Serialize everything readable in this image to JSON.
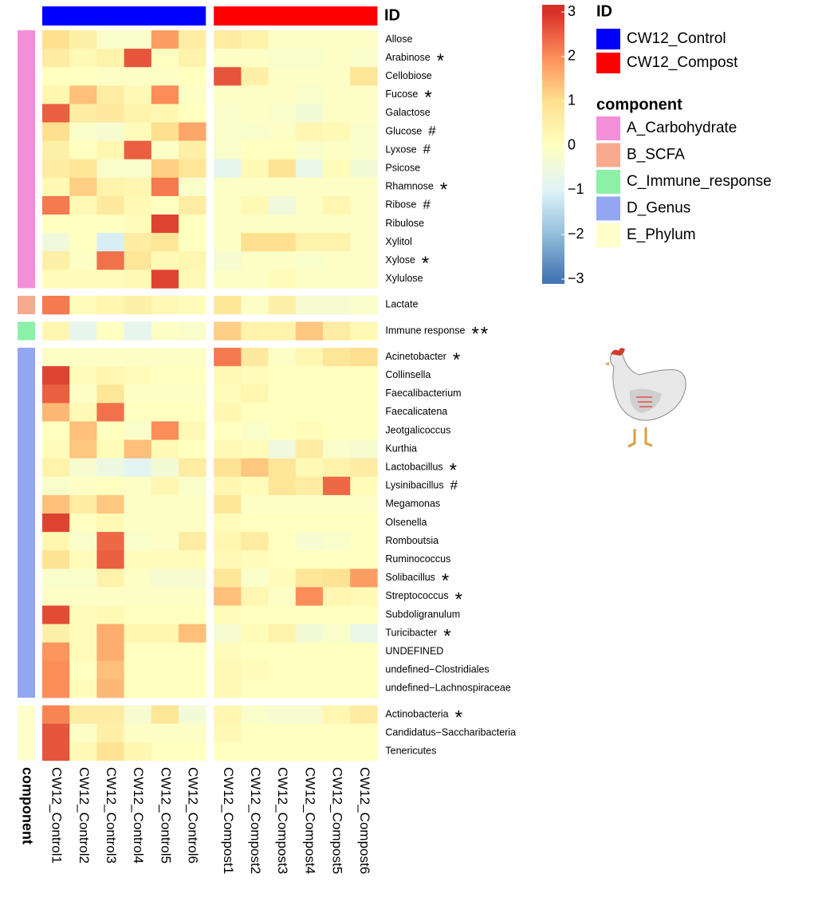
{
  "chart_data": {
    "type": "heatmap",
    "column_title": "ID",
    "row_title": "component",
    "zlim": [
      -3,
      3
    ],
    "zticks": [
      3,
      2,
      1,
      0,
      {
        "value": -1,
        "label": "−1"
      },
      {
        "value": -2,
        "label": "−2"
      },
      {
        "value": -3,
        "label": "−3"
      }
    ],
    "colorscale": [
      "#4575b4",
      "#91bfdb",
      "#e0f3f8",
      "#ffffbf",
      "#fee090",
      "#fc8d59",
      "#d73027"
    ],
    "mark_color": "#ff0000",
    "column_groups": [
      {
        "name": "CW12_Control",
        "color": "#0000ff",
        "columns": [
          "CW12_Control1",
          "CW12_Control2",
          "CW12_Control3",
          "CW12_Control4",
          "CW12_Control5",
          "CW12_Control6"
        ]
      },
      {
        "name": "CW12_Compost",
        "color": "#ff0000",
        "columns": [
          "CW12_Compost1",
          "CW12_Compost2",
          "CW12_Compost3",
          "CW12_Compost4",
          "CW12_Compost5",
          "CW12_Compost6"
        ]
      }
    ],
    "row_groups": [
      {
        "name": "A_Carbohydrate",
        "color": "#f38ed8",
        "rows": [
          {
            "name": "Allose",
            "values": [
              1.0,
              0.5,
              -0.2,
              -0.2,
              1.8,
              0.6,
              0.6,
              0.4,
              -0.1,
              -0.1,
              -0.1,
              -0.1
            ]
          },
          {
            "name": "Arabinose",
            "mark": "*",
            "values": [
              0.6,
              0.2,
              0.4,
              2.6,
              0.0,
              0.4,
              -0.1,
              -0.1,
              -0.2,
              -0.2,
              -0.1,
              -0.2
            ]
          },
          {
            "name": "Cellobiose",
            "values": [
              0.0,
              0.0,
              -0.1,
              -0.1,
              -0.1,
              0.0,
              2.6,
              0.5,
              -0.1,
              -0.1,
              -0.1,
              0.8
            ]
          },
          {
            "name": "Fucose",
            "mark": "*",
            "values": [
              0.3,
              1.4,
              0.6,
              0.2,
              2.0,
              -0.1,
              -0.1,
              -0.1,
              -0.1,
              -0.2,
              -0.1,
              -0.1
            ]
          },
          {
            "name": "Galactose",
            "values": [
              2.5,
              0.6,
              0.7,
              0.4,
              0.3,
              0.0,
              -0.2,
              -0.1,
              -0.2,
              -0.4,
              -0.1,
              -0.1
            ]
          },
          {
            "name": "Glucose",
            "mark": "#",
            "values": [
              1.0,
              -0.2,
              -0.3,
              0.1,
              1.0,
              1.7,
              -0.2,
              -0.2,
              -0.1,
              0.3,
              0.2,
              -0.2
            ]
          },
          {
            "name": "Lyxose",
            "mark": "#",
            "values": [
              0.5,
              0.0,
              0.3,
              2.5,
              -0.1,
              0.5,
              -0.2,
              0.0,
              0.0,
              -0.2,
              -0.1,
              -0.2
            ]
          },
          {
            "name": "Psicose",
            "values": [
              0.6,
              0.8,
              -0.2,
              -0.2,
              1.2,
              0.8,
              -0.8,
              0.2,
              0.9,
              -0.7,
              0.1,
              -0.4
            ]
          },
          {
            "name": "Rhamnose",
            "mark": "*",
            "values": [
              0.2,
              1.2,
              0.4,
              0.3,
              2.2,
              -0.2,
              -0.1,
              -0.1,
              -0.1,
              -0.1,
              -0.1,
              -0.1
            ]
          },
          {
            "name": "Ribose",
            "mark": "#",
            "values": [
              2.2,
              0.2,
              0.7,
              0.2,
              0.0,
              0.6,
              -0.1,
              0.2,
              -0.5,
              -0.1,
              0.3,
              -0.1
            ]
          },
          {
            "name": "Ribulose",
            "values": [
              0.0,
              0.0,
              0.0,
              0.1,
              2.8,
              0.0,
              -0.1,
              -0.1,
              -0.1,
              -0.1,
              -0.1,
              -0.1
            ]
          },
          {
            "name": "Xylitol",
            "values": [
              -0.5,
              0.0,
              -1.1,
              0.6,
              0.8,
              0.0,
              -0.1,
              1.0,
              1.0,
              0.4,
              0.4,
              -0.1
            ]
          },
          {
            "name": "Xylose",
            "mark": "*",
            "values": [
              0.5,
              -0.1,
              2.3,
              0.8,
              0.2,
              0.3,
              -0.3,
              -0.1,
              -0.1,
              -0.2,
              -0.1,
              -0.1
            ]
          },
          {
            "name": "Xylulose",
            "values": [
              0.1,
              0.1,
              0.1,
              0.2,
              2.8,
              0.2,
              -0.1,
              -0.1,
              0.1,
              -0.1,
              -0.1,
              -0.1
            ]
          }
        ]
      },
      {
        "name": "B_SCFA",
        "color": "#f6a98c",
        "rows": [
          {
            "name": "Lactate",
            "values": [
              2.2,
              0.1,
              0.3,
              0.5,
              0.2,
              0.1,
              0.8,
              -0.1,
              0.5,
              -0.3,
              -0.3,
              -0.2
            ]
          }
        ]
      },
      {
        "name": "C_Immune_response",
        "color": "#8cf0a8",
        "rows": [
          {
            "name": "Immune response",
            "mark": "**",
            "values": [
              0.3,
              -0.8,
              0.0,
              -0.8,
              -0.1,
              -0.2,
              1.2,
              0.4,
              0.4,
              1.3,
              0.6,
              0.2
            ]
          }
        ]
      },
      {
        "name": "D_Genus",
        "color": "#93a6f2",
        "rows": [
          {
            "name": "Acinetobacter",
            "mark": "*",
            "values": [
              -0.1,
              -0.1,
              -0.1,
              -0.1,
              -0.1,
              -0.1,
              2.2,
              0.7,
              -0.1,
              0.3,
              0.8,
              1.0
            ]
          },
          {
            "name": "Collinsella",
            "values": [
              2.8,
              0.1,
              0.3,
              0.1,
              0.0,
              0.0,
              0.2,
              0.1,
              0.0,
              0.0,
              0.0,
              0.0
            ]
          },
          {
            "name": "Faecalibacterium",
            "values": [
              2.5,
              -0.1,
              0.8,
              -0.1,
              -0.1,
              -0.1,
              0.1,
              0.3,
              0.0,
              0.0,
              0.0,
              0.0
            ]
          },
          {
            "name": "Faecalicatena",
            "values": [
              1.5,
              0.2,
              2.3,
              0.0,
              0.0,
              0.0,
              0.3,
              0.0,
              0.0,
              0.0,
              0.0,
              0.0
            ]
          },
          {
            "name": "Jeotgalicoccus",
            "values": [
              0.0,
              1.4,
              0.0,
              -0.2,
              2.0,
              0.2,
              0.0,
              -0.2,
              0.0,
              0.1,
              0.0,
              0.0
            ]
          },
          {
            "name": "Kurthia",
            "values": [
              0.1,
              1.3,
              0.1,
              1.4,
              0.2,
              0.0,
              0.2,
              0.1,
              -0.5,
              0.6,
              -0.2,
              -0.3
            ]
          },
          {
            "name": "Lactobacillus",
            "mark": "*",
            "values": [
              0.4,
              -0.3,
              -0.6,
              -0.9,
              -0.4,
              0.6,
              0.9,
              1.3,
              0.8,
              0.2,
              0.4,
              0.6
            ]
          },
          {
            "name": "Lysinibacillus",
            "mark": "#",
            "values": [
              -0.2,
              -0.1,
              0.0,
              -0.1,
              0.3,
              -0.2,
              0.3,
              0.1,
              0.8,
              0.6,
              2.4,
              0.1
            ]
          },
          {
            "name": "Megamonas",
            "values": [
              1.4,
              0.6,
              1.3,
              -0.1,
              -0.1,
              -0.1,
              0.8,
              -0.1,
              -0.1,
              -0.1,
              -0.1,
              -0.1
            ]
          },
          {
            "name": "Olsenella",
            "values": [
              2.8,
              0.0,
              0.2,
              -0.1,
              -0.1,
              -0.1,
              0.1,
              0.0,
              0.0,
              0.0,
              0.0,
              0.0
            ]
          },
          {
            "name": "Romboutsia",
            "values": [
              0.3,
              -0.2,
              2.4,
              -0.2,
              -0.1,
              0.6,
              0.3,
              0.6,
              0.0,
              -0.3,
              -0.2,
              0.0
            ]
          },
          {
            "name": "Ruminococcus",
            "values": [
              0.9,
              0.1,
              2.5,
              0.1,
              0.1,
              0.1,
              0.2,
              0.1,
              0.0,
              0.0,
              0.0,
              0.0
            ]
          },
          {
            "name": "Solibacillus",
            "mark": "*",
            "values": [
              -0.2,
              -0.2,
              0.4,
              -0.1,
              -0.3,
              -0.3,
              0.8,
              -0.2,
              0.1,
              0.8,
              0.9,
              1.8
            ]
          },
          {
            "name": "Streptococcus",
            "mark": "*",
            "values": [
              -0.1,
              -0.1,
              -0.1,
              -0.1,
              -0.1,
              -0.1,
              1.4,
              0.3,
              -0.1,
              2.0,
              0.3,
              0.2
            ]
          },
          {
            "name": "Subdoligranulum",
            "values": [
              2.7,
              0.1,
              0.2,
              0.0,
              0.0,
              0.0,
              0.1,
              0.0,
              0.0,
              0.0,
              0.0,
              0.0
            ]
          },
          {
            "name": "Turicibacter",
            "mark": "*",
            "values": [
              0.5,
              0.1,
              1.6,
              0.3,
              0.3,
              1.4,
              -0.3,
              0.1,
              0.4,
              -0.4,
              -0.2,
              -0.7
            ]
          },
          {
            "name": "UNDEFINED",
            "values": [
              1.9,
              0.1,
              1.6,
              0.0,
              0.0,
              0.0,
              0.1,
              0.0,
              0.0,
              0.0,
              0.0,
              0.0
            ]
          },
          {
            "name": "undefined−Clostridiales",
            "values": [
              2.0,
              0.0,
              1.4,
              0.0,
              0.0,
              0.0,
              0.2,
              0.1,
              0.0,
              0.0,
              0.0,
              0.0
            ]
          },
          {
            "name": "undefined−Lachnospiraceae",
            "values": [
              2.0,
              0.1,
              1.5,
              0.0,
              0.0,
              0.0,
              0.2,
              0.0,
              0.0,
              0.0,
              0.0,
              0.0
            ]
          }
        ]
      },
      {
        "name": "E_Phylum",
        "color": "#ffffcc",
        "rows": [
          {
            "name": "Actinobacteria",
            "mark": "*",
            "values": [
              2.1,
              0.6,
              0.6,
              -0.3,
              0.8,
              -0.4,
              0.3,
              -0.2,
              -0.3,
              -0.3,
              0.3,
              0.6
            ]
          },
          {
            "name": "Candidatus−Saccharibacteria",
            "values": [
              2.6,
              -0.1,
              0.5,
              -0.1,
              -0.1,
              -0.1,
              0.2,
              0.0,
              0.0,
              0.0,
              0.0,
              0.0
            ]
          },
          {
            "name": "Tenericutes",
            "values": [
              2.6,
              0.2,
              0.9,
              0.3,
              0.0,
              0.0,
              0.0,
              0.0,
              0.0,
              0.0,
              0.0,
              0.0
            ]
          }
        ]
      }
    ]
  }
}
